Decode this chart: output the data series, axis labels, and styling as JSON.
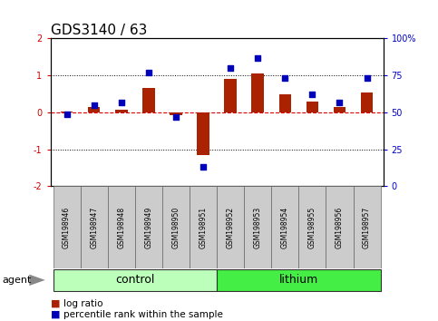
{
  "title": "GDS3140 / 63",
  "samples": [
    "GSM198946",
    "GSM198947",
    "GSM198948",
    "GSM198949",
    "GSM198950",
    "GSM198951",
    "GSM198952",
    "GSM198953",
    "GSM198954",
    "GSM198955",
    "GSM198956",
    "GSM198957"
  ],
  "log_ratio": [
    0.02,
    0.15,
    0.07,
    0.65,
    -0.07,
    -1.15,
    0.9,
    1.05,
    0.5,
    0.3,
    0.15,
    0.55
  ],
  "percentile": [
    49,
    55,
    57,
    77,
    47,
    13,
    80,
    87,
    73,
    62,
    57,
    73
  ],
  "groups": [
    {
      "label": "control",
      "start": 0,
      "end": 5,
      "color": "#bbffbb"
    },
    {
      "label": "lithium",
      "start": 6,
      "end": 11,
      "color": "#44ee44"
    }
  ],
  "ylim_left": [
    -2,
    2
  ],
  "ylim_right": [
    0,
    100
  ],
  "yticks_left": [
    -2,
    -1,
    0,
    1,
    2
  ],
  "yticks_right": [
    0,
    25,
    50,
    75,
    100
  ],
  "ytick_labels_right": [
    "0",
    "25",
    "50",
    "75",
    "100%"
  ],
  "bar_color": "#aa2200",
  "dot_color": "#0000bb",
  "dashed_line_color": "#dd0000",
  "agent_label": "agent",
  "legend": [
    {
      "label": "log ratio",
      "color": "#aa2200"
    },
    {
      "label": "percentile rank within the sample",
      "color": "#0000bb"
    }
  ],
  "bar_width": 0.45,
  "title_fontsize": 11,
  "tick_fontsize": 7,
  "group_fontsize": 9,
  "agent_fontsize": 8,
  "legend_fontsize": 7.5,
  "sample_fontsize": 5.5
}
